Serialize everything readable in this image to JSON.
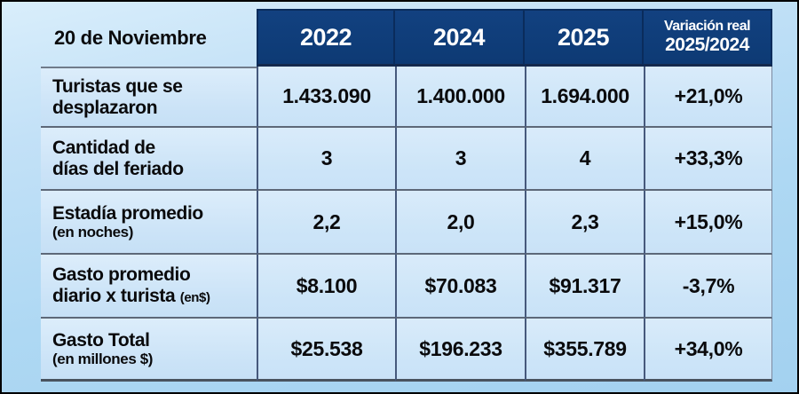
{
  "colors": {
    "page_background_top": "#d9eefb",
    "page_background_bottom": "#a3d1f0",
    "header_navy": "#0d3a74",
    "header_text": "#ffffff",
    "cell_background": "#d2e7f9",
    "divider": "#5d6878",
    "column_border": "#46597c",
    "text": "#0a0a0c"
  },
  "table": {
    "corner_label": "20 de Noviembre",
    "year_headers": [
      "2022",
      "2024",
      "2025"
    ],
    "variation_header": {
      "line1": "Variación real",
      "line2": "2025/2024"
    },
    "rows": [
      {
        "label_line1": "Turistas que se",
        "label_line2": "desplazaron",
        "label_suffix": "",
        "v2022": "1.433.090",
        "v2024": "1.400.000",
        "v2025": "1.694.000",
        "variation": "+21,0%"
      },
      {
        "label_line1": "Cantidad de",
        "label_line2": "días del feriado",
        "label_suffix": "",
        "v2022": "3",
        "v2024": "3",
        "v2025": "4",
        "variation": "+33,3%"
      },
      {
        "label_line1": "Estadía promedio",
        "label_line2": "(en noches)",
        "label_suffix": "",
        "v2022": "2,2",
        "v2024": "2,0",
        "v2025": "2,3",
        "variation": "+15,0%"
      },
      {
        "label_line1": "Gasto promedio",
        "label_line2": "diario x turista",
        "label_suffix": "(en$)",
        "v2022": "$8.100",
        "v2024": "$70.083",
        "v2025": "$91.317",
        "variation": "-3,7%"
      },
      {
        "label_line1": "Gasto Total",
        "label_line2": "(en millones $)",
        "label_suffix": "",
        "v2022": "$25.538",
        "v2024": "$196.233",
        "v2025": "$355.789",
        "variation": "+34,0%"
      }
    ]
  },
  "chart_data": {
    "type": "table",
    "title": "20 de Noviembre",
    "columns": [
      "20 de Noviembre",
      "2022",
      "2024",
      "2025",
      "Variación real 2025/2024"
    ],
    "rows": [
      [
        "Turistas que se desplazaron",
        "1.433.090",
        "1.400.000",
        "1.694.000",
        "+21,0%"
      ],
      [
        "Cantidad de días del feriado",
        "3",
        "3",
        "4",
        "+33,3%"
      ],
      [
        "Estadía promedio (en noches)",
        "2,2",
        "2,0",
        "2,3",
        "+15,0%"
      ],
      [
        "Gasto promedio diario x turista (en$)",
        "$8.100",
        "$70.083",
        "$91.317",
        "-3,7%"
      ],
      [
        "Gasto Total (en millones $)",
        "$25.538",
        "$196.233",
        "$355.789",
        "+34,0%"
      ]
    ]
  }
}
